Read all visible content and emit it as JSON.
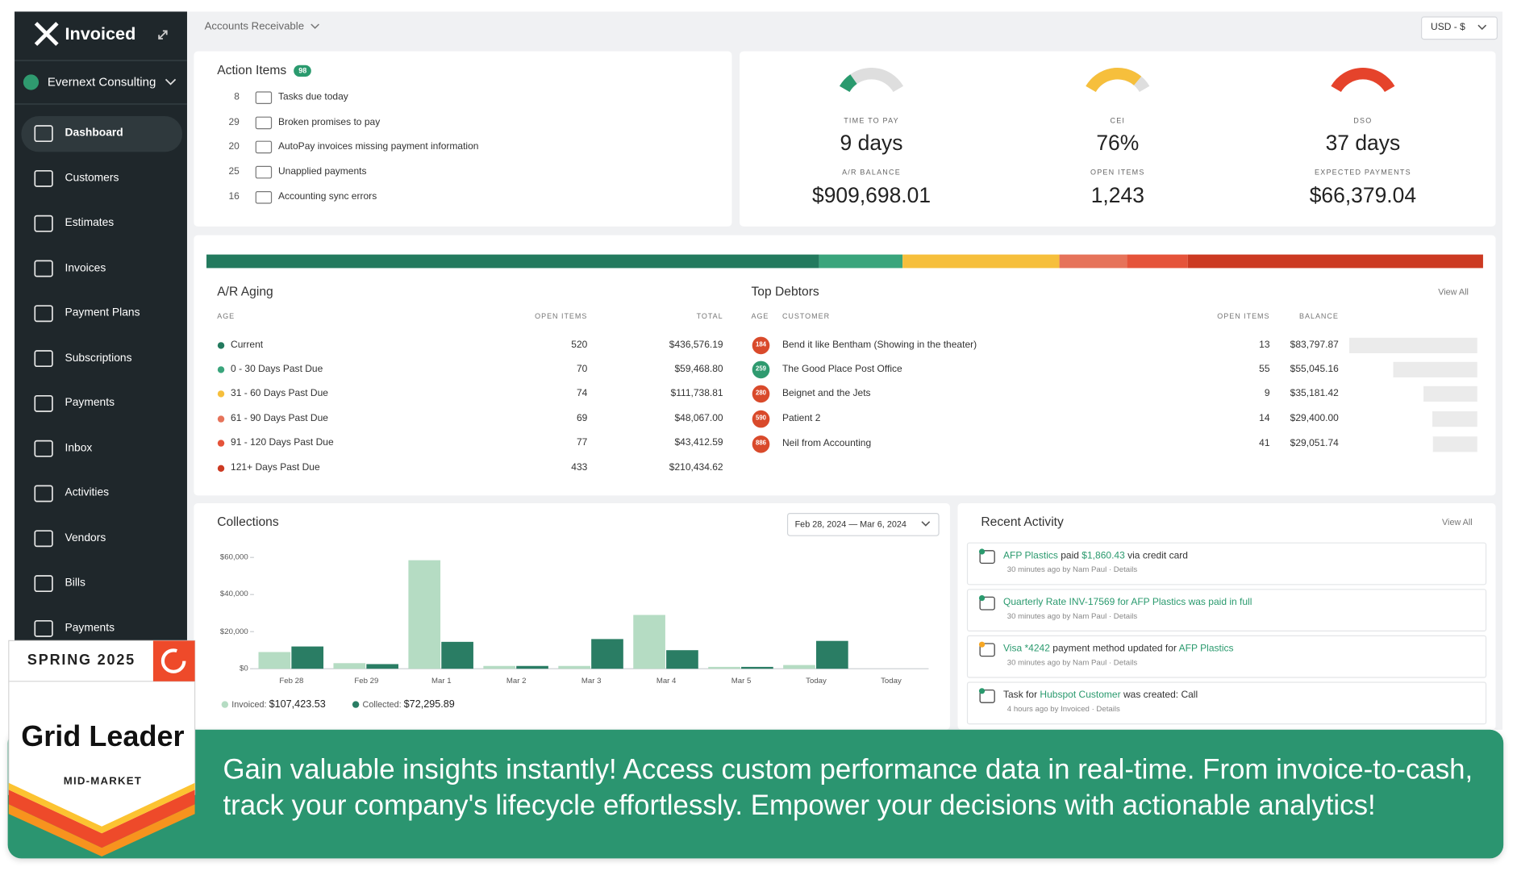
{
  "sidebar": {
    "brand": "Invoiced",
    "organization": "Evernext Consulting",
    "active": 0,
    "nav": [
      "Dashboard",
      "Customers",
      "Estimates",
      "Invoices",
      "Payment Plans",
      "Subscriptions",
      "Payments",
      "Inbox",
      "Activities",
      "Vendors",
      "Bills",
      "Payments"
    ]
  },
  "header": {
    "section": "Accounts Receivable",
    "currency": "USD - $"
  },
  "action_items": {
    "title": "Action Items",
    "badge": "98",
    "items": [
      {
        "count": 8,
        "label": "Tasks due today"
      },
      {
        "count": 29,
        "label": "Broken promises to pay"
      },
      {
        "count": 20,
        "label": "AutoPay invoices missing payment information"
      },
      {
        "count": 25,
        "label": "Unapplied payments"
      },
      {
        "count": 16,
        "label": "Accounting sync errors"
      }
    ]
  },
  "metrics": [
    {
      "label": "TIME TO PAY",
      "value": "9 days",
      "sub_label": "A/R BALANCE",
      "sub_value": "$909,698.01"
    },
    {
      "label": "CEI",
      "value": "76%",
      "sub_label": "OPEN ITEMS",
      "sub_value": "1,243"
    },
    {
      "label": "DSO",
      "value": "37 days",
      "sub_label": "EXPECTED PAYMENTS",
      "sub_value": "$66,379.04"
    }
  ],
  "ar_aging": {
    "title": "A/R Aging",
    "columns": [
      "AGE",
      "OPEN ITEMS",
      "TOTAL"
    ],
    "rows": [
      {
        "label": "Current",
        "color": "#237a5e",
        "open_items": 520,
        "total": 436576.19,
        "total_label": "$436,576.19"
      },
      {
        "label": "0 - 30 Days Past Due",
        "color": "#3aa57c",
        "open_items": 70,
        "total": 59468.8,
        "total_label": "$59,468.80"
      },
      {
        "label": "31 - 60 Days Past Due",
        "color": "#f6bf3c",
        "open_items": 74,
        "total": 111738.81,
        "total_label": "$111,738.81"
      },
      {
        "label": "61 - 90 Days Past Due",
        "color": "#e6735a",
        "open_items": 69,
        "total": 48067.0,
        "total_label": "$48,067.00"
      },
      {
        "label": "91 - 120 Days Past Due",
        "color": "#e5533a",
        "open_items": 77,
        "total": 43412.59,
        "total_label": "$43,412.59"
      },
      {
        "label": "121+ Days Past Due",
        "color": "#cc3a22",
        "open_items": 433,
        "total": 210434.62,
        "total_label": "$210,434.62"
      }
    ]
  },
  "top_debtors": {
    "title": "Top Debtors",
    "view_all": "View All",
    "columns": [
      "AGE",
      "CUSTOMER",
      "OPEN ITEMS",
      "BALANCE"
    ],
    "rows": [
      {
        "age": "184",
        "age_color": "#d94a2b",
        "customer": "Bend it like Bentham (Showing in the theater)",
        "open_items": 13,
        "balance": 83797.87,
        "balance_label": "$83,797.87"
      },
      {
        "age": "259",
        "age_color": "#2f9a6f",
        "customer": "The Good Place Post Office",
        "open_items": 55,
        "balance": 55045.16,
        "balance_label": "$55,045.16"
      },
      {
        "age": "280",
        "age_color": "#d94a2b",
        "customer": "Beignet and the Jets",
        "open_items": 9,
        "balance": 35181.42,
        "balance_label": "$35,181.42"
      },
      {
        "age": "590",
        "age_color": "#d94a2b",
        "customer": "Patient 2",
        "open_items": 14,
        "balance": 29400.0,
        "balance_label": "$29,400.00"
      },
      {
        "age": "886",
        "age_color": "#d94a2b",
        "customer": "Neil from Accounting",
        "open_items": 41,
        "balance": 29051.74,
        "balance_label": "$29,051.74"
      }
    ]
  },
  "chart_data": {
    "type": "bar",
    "title": "Collections",
    "date_range": "Feb 28, 2024 — Mar 6, 2024",
    "categories": [
      "Feb 28",
      "Feb 29",
      "Mar 1",
      "Mar 2",
      "Mar 3",
      "Mar 4",
      "Mar 5",
      "Today",
      "Today"
    ],
    "series": [
      {
        "name": "Invoiced:",
        "total_label": "$107,423.53",
        "color": "#b5dcc3",
        "values": [
          9000,
          3000,
          58500,
          1500,
          1500,
          29000,
          1000,
          2000,
          null
        ]
      },
      {
        "name": "Collected:",
        "total_label": "$72,295.89",
        "color": "#2a7d64",
        "values": [
          12000,
          2500,
          14500,
          1500,
          16000,
          10000,
          1000,
          15000,
          null
        ]
      }
    ],
    "ylim": [
      0,
      60000
    ],
    "yticks": [
      {
        "value": 0,
        "label": "$0"
      },
      {
        "value": 20000,
        "label": "$20,000"
      },
      {
        "value": 40000,
        "label": "$40,000"
      },
      {
        "value": 60000,
        "label": "$60,000"
      }
    ]
  },
  "recent_activity": {
    "title": "Recent Activity",
    "view_all": "View All",
    "items": [
      {
        "segments": [
          {
            "text": "AFP Plastics",
            "link": true
          },
          {
            "text": " paid "
          },
          {
            "text": "$1,860.43",
            "link": true
          },
          {
            "text": " via credit card"
          }
        ],
        "meta": "30 minutes ago by Nam Paul · Details"
      },
      {
        "segments": [
          {
            "text": "Quarterly Rate INV-17569 for AFP Plastics was paid in full",
            "link": true
          }
        ],
        "meta": "30 minutes ago by Nam Paul · Details"
      },
      {
        "segments": [
          {
            "text": "Visa *4242",
            "link": true
          },
          {
            "text": " payment method updated for "
          },
          {
            "text": "AFP Plastics",
            "link": true
          }
        ],
        "meta": "30 minutes ago by Nam Paul · Details"
      },
      {
        "segments": [
          {
            "text": "Task for "
          },
          {
            "text": "Hubspot Customer",
            "link": true
          },
          {
            "text": " was created: Call"
          }
        ],
        "meta": "4 hours ago by Invoiced · Details"
      }
    ]
  },
  "banner": {
    "lines": [
      "Gain valuable insights instantly! Access custom performance data in real-time. From invoice-to-cash,",
      "track your company's lifecycle effortlessly. Empower your decisions with actionable analytics!"
    ]
  },
  "badge": {
    "season": "SPRING 2025",
    "title": "Grid Leader",
    "segment": "MID-MARKET"
  }
}
